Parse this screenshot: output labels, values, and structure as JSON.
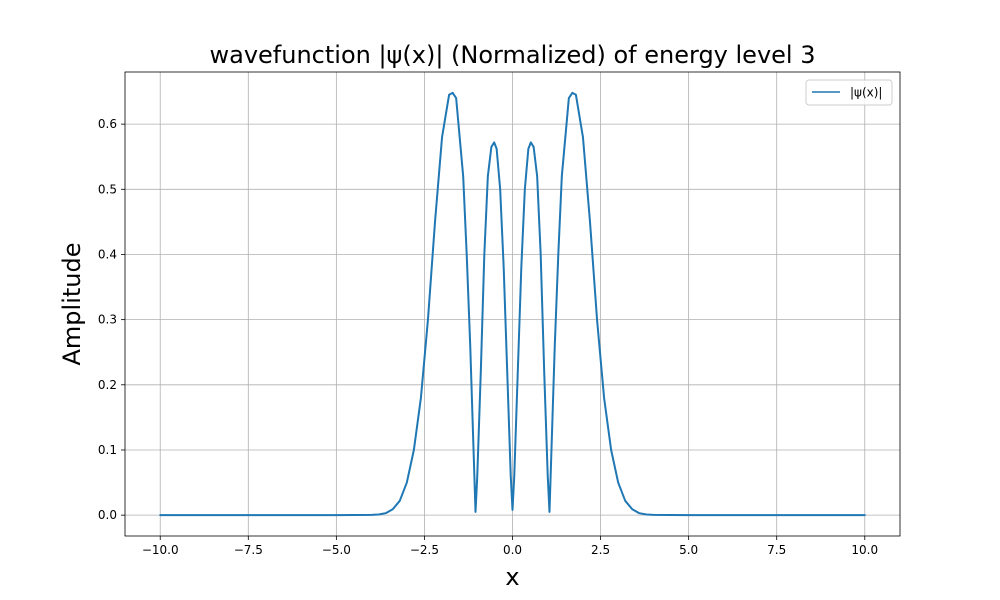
{
  "chart_data": {
    "type": "line",
    "title": "wavefunction |ψ(x)| (Normalized) of energy level 3",
    "xlabel": "x",
    "ylabel": "Amplitude",
    "xlim": [
      -11.0,
      11.0
    ],
    "ylim": [
      -0.032,
      0.68
    ],
    "xticks": [
      -10.0,
      -7.5,
      -5.0,
      -2.5,
      0.0,
      2.5,
      5.0,
      7.5,
      10.0
    ],
    "xtick_labels": [
      "−10.0",
      "−7.5",
      "−5.0",
      "−2.5",
      "0.0",
      "2.5",
      "5.0",
      "7.5",
      "10.0"
    ],
    "yticks": [
      0.0,
      0.1,
      0.2,
      0.3,
      0.4,
      0.5,
      0.6
    ],
    "ytick_labels": [
      "0.0",
      "0.1",
      "0.2",
      "0.3",
      "0.4",
      "0.5",
      "0.6"
    ],
    "grid": true,
    "legend_position": "top-right",
    "series": [
      {
        "name": "|ψ(x)|",
        "color": "#1f77b4",
        "x": [
          -10.0,
          -5.0,
          -4.0,
          -3.8,
          -3.6,
          -3.4,
          -3.2,
          -3.0,
          -2.8,
          -2.6,
          -2.4,
          -2.2,
          -2.0,
          -1.8,
          -1.7,
          -1.6,
          -1.4,
          -1.3,
          -1.2,
          -1.1,
          -1.05,
          -1.0,
          -0.9,
          -0.8,
          -0.7,
          -0.6,
          -0.52,
          -0.45,
          -0.35,
          -0.25,
          -0.15,
          -0.05,
          0.0,
          0.05,
          0.15,
          0.25,
          0.35,
          0.45,
          0.52,
          0.6,
          0.7,
          0.8,
          0.9,
          1.0,
          1.05,
          1.1,
          1.2,
          1.3,
          1.4,
          1.6,
          1.7,
          1.8,
          2.0,
          2.2,
          2.4,
          2.6,
          2.8,
          3.0,
          3.2,
          3.4,
          3.6,
          3.8,
          4.0,
          5.0,
          10.0
        ],
        "values": [
          0.0,
          0.0,
          0.0005,
          0.001,
          0.003,
          0.009,
          0.022,
          0.05,
          0.1,
          0.18,
          0.3,
          0.45,
          0.58,
          0.645,
          0.648,
          0.64,
          0.52,
          0.4,
          0.26,
          0.09,
          0.005,
          0.06,
          0.22,
          0.4,
          0.52,
          0.565,
          0.572,
          0.562,
          0.5,
          0.38,
          0.22,
          0.06,
          0.008,
          0.06,
          0.22,
          0.38,
          0.5,
          0.562,
          0.572,
          0.565,
          0.52,
          0.4,
          0.22,
          0.06,
          0.005,
          0.09,
          0.26,
          0.4,
          0.52,
          0.64,
          0.648,
          0.645,
          0.58,
          0.45,
          0.3,
          0.18,
          0.1,
          0.05,
          0.022,
          0.009,
          0.003,
          0.001,
          0.0005,
          0.0,
          0.0
        ]
      }
    ]
  }
}
